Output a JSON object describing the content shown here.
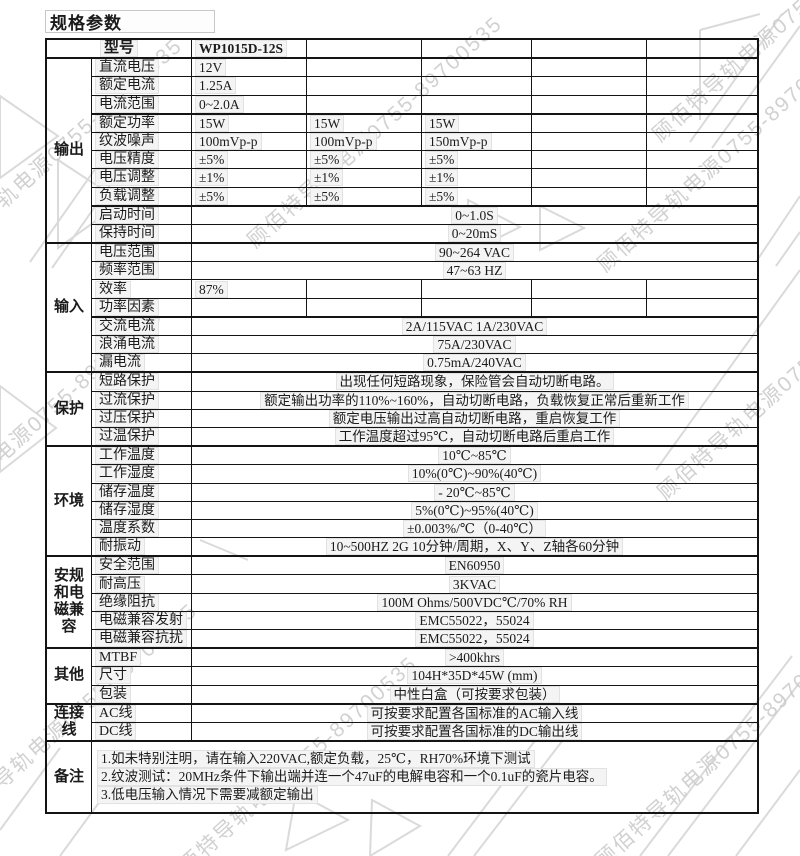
{
  "page_title": "规格参数",
  "watermark": {
    "text": "顾佰特导轨电源0755-89700535",
    "color": "#c9c9c9"
  },
  "colors": {
    "border": "#141414",
    "chip_bg": "#f4f4f4",
    "text": "#1b1b1b"
  },
  "table": {
    "model_row": {
      "label": "型号",
      "values": [
        "WP1015D-12S",
        "",
        "",
        "",
        ""
      ]
    },
    "sections": [
      {
        "name": "输出",
        "rows": [
          {
            "param": "直流电压",
            "type": "cols",
            "values": [
              "12V",
              "",
              "",
              "",
              ""
            ]
          },
          {
            "param": "额定电流",
            "type": "cols",
            "values": [
              "1.25A",
              "",
              "",
              "",
              ""
            ]
          },
          {
            "param": "电流范围",
            "type": "cols",
            "values": [
              "0~2.0A",
              "",
              "",
              "",
              ""
            ]
          },
          {
            "param": "额定功率",
            "type": "cols",
            "values": [
              "15W",
              "15W",
              "15W",
              "",
              ""
            ],
            "thick": true
          },
          {
            "param": "纹波噪声",
            "type": "cols",
            "values": [
              "100mVp-p",
              "100mVp-p",
              "150mVp-p",
              "",
              ""
            ]
          },
          {
            "param": "电压精度",
            "type": "cols",
            "values": [
              "±5%",
              "±5%",
              "±5%",
              "",
              ""
            ]
          },
          {
            "param": "电压调整",
            "type": "cols",
            "values": [
              "±1%",
              "±1%",
              "±1%",
              "",
              ""
            ]
          },
          {
            "param": "负载调整",
            "type": "cols",
            "values": [
              "±5%",
              "±5%",
              "±5%",
              "",
              ""
            ]
          },
          {
            "param": "启动时间",
            "type": "merged",
            "value": "0~1.0S",
            "thick": true
          },
          {
            "param": "保持时间",
            "type": "merged",
            "value": "0~20mS"
          }
        ]
      },
      {
        "name": "输入",
        "rows": [
          {
            "param": "电压范围",
            "type": "merged",
            "value": "90~264 VAC"
          },
          {
            "param": "频率范围",
            "type": "merged",
            "value": "47~63 HZ"
          },
          {
            "param": "效率",
            "type": "cols",
            "values": [
              "87%",
              "",
              "",
              "",
              ""
            ]
          },
          {
            "param": "功率因素",
            "type": "cols",
            "values": [
              "",
              "",
              "",
              "",
              ""
            ]
          },
          {
            "param": "交流电流",
            "type": "merged",
            "value": "2A/115VAC  1A/230VAC",
            "thick": true
          },
          {
            "param": "浪涌电流",
            "type": "merged",
            "value": "75A/230VAC"
          },
          {
            "param": "漏电流",
            "type": "merged",
            "value": "0.75mA/240VAC"
          }
        ]
      },
      {
        "name": "保护",
        "rows": [
          {
            "param": "短路保护",
            "type": "merged",
            "value": "出现任何短路现象，保险管会自动切断电路。"
          },
          {
            "param": "过流保护",
            "type": "merged",
            "value": "额定输出功率的110%~160%，自动切断电路，负载恢复正常后重新工作"
          },
          {
            "param": "过压保护",
            "type": "merged",
            "value": "额定电压输出过高自动切断电路，重启恢复工作"
          },
          {
            "param": "过温保护",
            "type": "merged",
            "value": "工作温度超过95℃，自动切断电路后重启工作"
          }
        ]
      },
      {
        "name": "环境",
        "rows": [
          {
            "param": "工作温度",
            "type": "merged",
            "value": "10℃~85℃"
          },
          {
            "param": "工作湿度",
            "type": "merged",
            "value": "10%(0℃)~90%(40℃)"
          },
          {
            "param": "储存温度",
            "type": "merged",
            "value": "- 20℃~85℃"
          },
          {
            "param": "储存湿度",
            "type": "merged",
            "value": "5%(0℃)~95%(40℃)"
          },
          {
            "param": "温度系数",
            "type": "merged",
            "value": "±0.003%/℃（0-40℃）"
          },
          {
            "param": "耐振动",
            "type": "merged",
            "value": "10~500HZ 2G 10分钟/周期，X、Y、Z轴各60分钟"
          }
        ]
      },
      {
        "name": "安规和电磁兼容",
        "rows": [
          {
            "param": "安全范围",
            "type": "merged",
            "value": "EN60950"
          },
          {
            "param": "耐高压",
            "type": "merged",
            "value": "3KVAC"
          },
          {
            "param": "绝缘阻抗",
            "type": "merged",
            "value": "100M Ohms/500VDC℃/70% RH"
          },
          {
            "param": "电磁兼容发射",
            "type": "merged",
            "value": "EMC55022，55024"
          },
          {
            "param": "电磁兼容抗扰",
            "type": "merged",
            "value": "EMC55022，55024"
          }
        ]
      },
      {
        "name": "其他",
        "rows": [
          {
            "param": "MTBF",
            "type": "merged",
            "value": ">400khrs"
          },
          {
            "param": "尺寸",
            "type": "merged",
            "value": "104H*35D*45W (mm)"
          },
          {
            "param": "包装",
            "type": "merged",
            "value": "中性白盒（可按要求包装）"
          }
        ]
      },
      {
        "name": "连接线",
        "rows": [
          {
            "param": "AC线",
            "type": "merged",
            "value": "可按要求配置各国标准的AC输入线"
          },
          {
            "param": "DC线",
            "type": "merged",
            "value": "可按要求配置各国标准的DC输出线"
          }
        ]
      }
    ],
    "notes": {
      "label": "备注",
      "lines": [
        "1.如未特别注明，请在输入220VAC,额定负载，25℃，RH70%环境下测试",
        "2.纹波测试：20MHz条件下输出端并连一个47uF的电解电容和一个0.1uF的瓷片电容。",
        "3.低电压输入情况下需要减额定输出"
      ]
    }
  }
}
